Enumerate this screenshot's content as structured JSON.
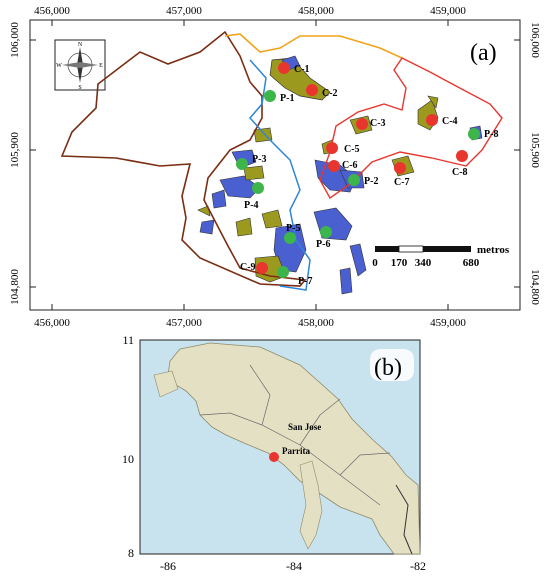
{
  "panel_a": {
    "label": "(a)",
    "top_ticks": [
      "456,000",
      "457,000",
      "458,000",
      "459,000"
    ],
    "bottom_ticks": [
      "456,000",
      "457,000",
      "458,000",
      "459,000"
    ],
    "left_ticks": [
      "106,000",
      "105,900",
      "104,800"
    ],
    "right_ticks": [
      "106,000",
      "105,900",
      "104,800"
    ],
    "compass": {
      "n": "N",
      "s": "S",
      "e": "E",
      "w": "W"
    },
    "scale_bar": {
      "unit": "metros",
      "ticks": [
        "0",
        "170",
        "340",
        "680"
      ]
    },
    "sample_points": [
      {
        "id": "C-1",
        "kind": "C"
      },
      {
        "id": "C-2",
        "kind": "C"
      },
      {
        "id": "C-3",
        "kind": "C"
      },
      {
        "id": "C-4",
        "kind": "C"
      },
      {
        "id": "C-5",
        "kind": "C"
      },
      {
        "id": "C-6",
        "kind": "C"
      },
      {
        "id": "C-7",
        "kind": "C"
      },
      {
        "id": "C-8",
        "kind": "C"
      },
      {
        "id": "C-9",
        "kind": "C"
      },
      {
        "id": "P-1",
        "kind": "P"
      },
      {
        "id": "P-2",
        "kind": "P"
      },
      {
        "id": "P-3",
        "kind": "P"
      },
      {
        "id": "P-4",
        "kind": "P"
      },
      {
        "id": "P-5",
        "kind": "P"
      },
      {
        "id": "P-6",
        "kind": "P"
      },
      {
        "id": "P-7",
        "kind": "P"
      },
      {
        "id": "P-8",
        "kind": "P"
      }
    ],
    "colors": {
      "C_marker": "#e8362f",
      "P_marker": "#3cb54a",
      "boundary_brown": "#7a2d12",
      "boundary_orange": "#f2a319",
      "boundary_red": "#e8362f",
      "boundary_blue": "#2d86d6",
      "fill_blue": "#4a5fd0",
      "fill_olive": "#9c9a1e"
    }
  },
  "panel_b": {
    "label": "(b)",
    "left_ticks": [
      "11",
      "10",
      "8"
    ],
    "bottom_ticks": [
      "-86",
      "-84",
      "-82"
    ],
    "places": [
      {
        "name": "San Jose"
      },
      {
        "name": "Parrita"
      }
    ],
    "colors": {
      "sea": "#c9e3ee",
      "land": "#e4e0c4",
      "marker": "#e8362f"
    }
  }
}
